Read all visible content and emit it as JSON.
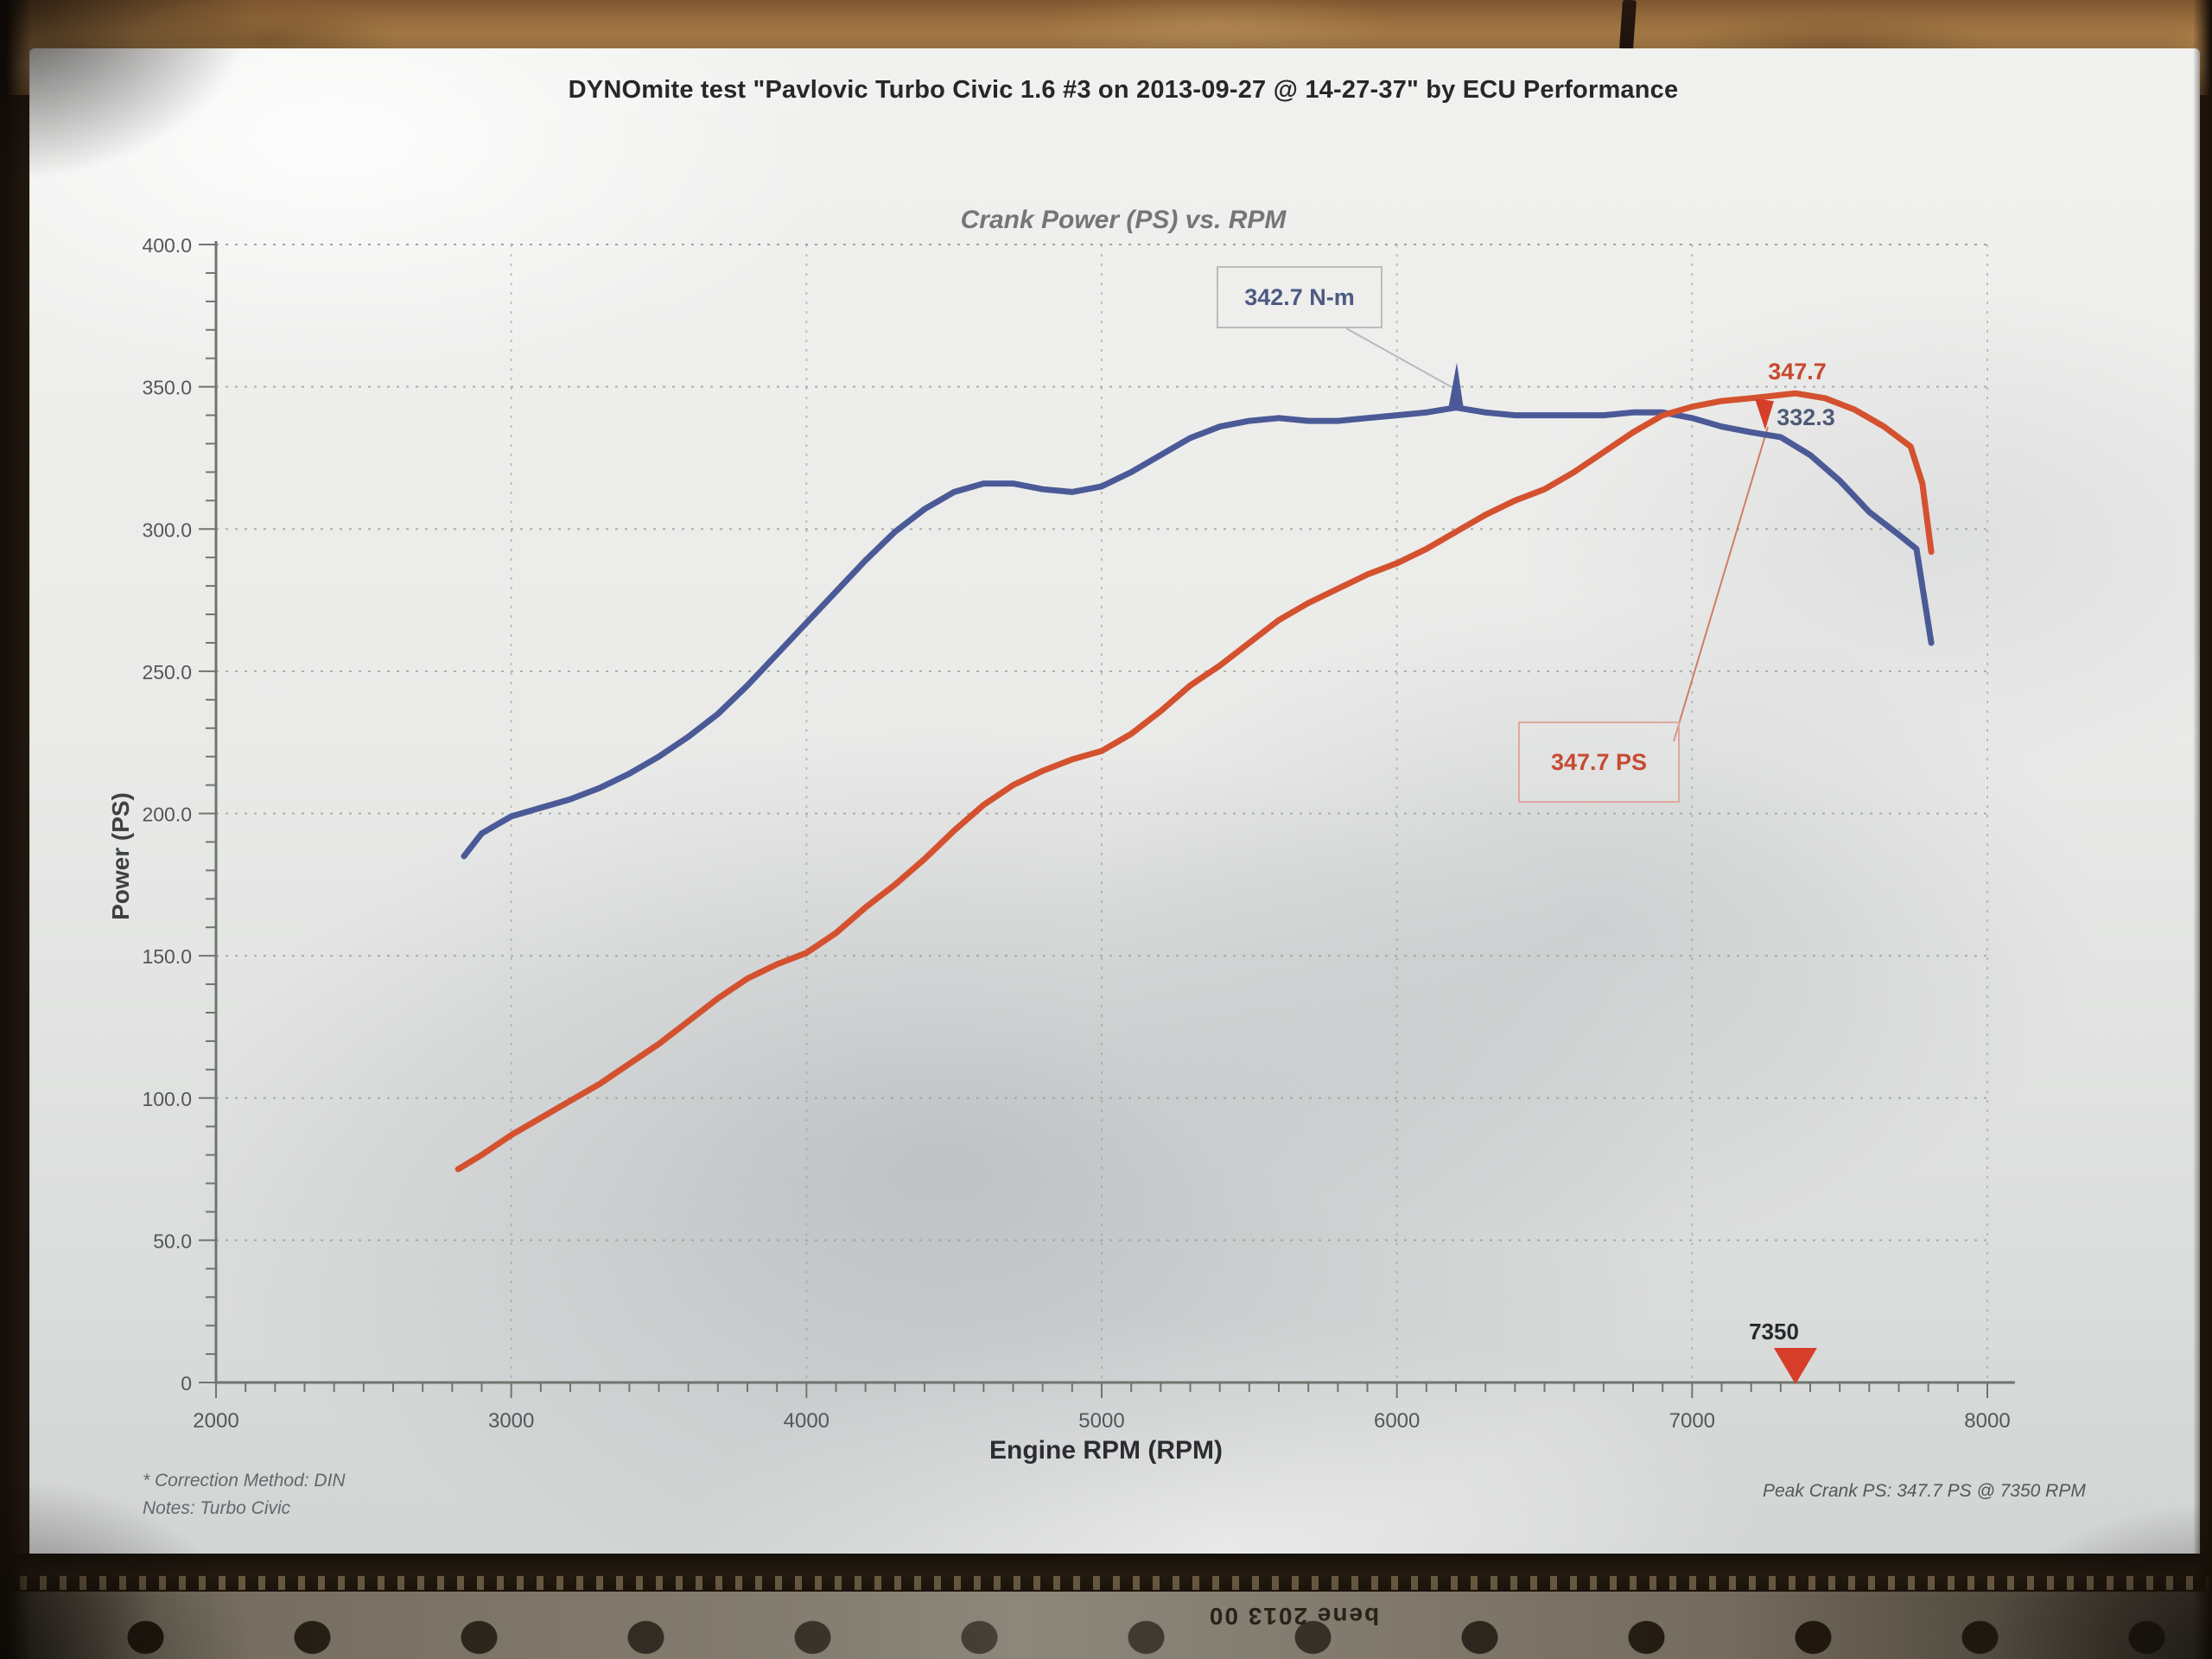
{
  "header": {
    "title": "DYNOmite test \"Pavlovic Turbo Civic 1.6  #3 on 2013-09-27 @ 14-27-37\" by ECU Performance"
  },
  "footer": {
    "correction_method": "* Correction Method: DIN",
    "notes": "Notes: Turbo Civic",
    "peak_summary": "Peak Crank PS: 347.7 PS @ 7350 RPM"
  },
  "photo": {
    "sleeve_text": "bene 2013 00"
  },
  "colors": {
    "torque_curve": "#4b5a97",
    "power_curve": "#d4512f",
    "marker_red": "#d63e2a",
    "grid": "#9aa09c",
    "axis": "#70756f",
    "tick_text": "#54575a"
  },
  "chart_data": {
    "type": "line",
    "title": "Crank Power (PS) vs. RPM",
    "xlabel": "Engine RPM (RPM)",
    "ylabel": "Power (PS)",
    "xlim": [
      2000,
      8000
    ],
    "ylim": [
      0,
      400
    ],
    "grid": "dotted, horizontal every 50 PS, vertical every 1000 RPM",
    "legend": "none",
    "x_ticks": [
      2000,
      3000,
      4000,
      5000,
      6000,
      7000,
      8000
    ],
    "x_tick_labels": [
      "2000",
      "3000",
      "4000",
      "5000",
      "6000",
      "7000",
      "8000"
    ],
    "y_ticks": [
      400,
      350,
      300,
      250,
      200,
      150,
      100,
      50,
      0
    ],
    "y_tick_labels": [
      "400.0",
      "350.0",
      "300.0",
      "250.0",
      "200.0",
      "150.0",
      "100.0",
      "50.0",
      "0"
    ],
    "series": [
      {
        "name": "crank-torque-nm",
        "color": "#4b5a97",
        "points": [
          [
            2840,
            185
          ],
          [
            2900,
            193
          ],
          [
            3000,
            199
          ],
          [
            3100,
            202
          ],
          [
            3200,
            205
          ],
          [
            3300,
            209
          ],
          [
            3400,
            214
          ],
          [
            3500,
            220
          ],
          [
            3600,
            227
          ],
          [
            3700,
            235
          ],
          [
            3800,
            245
          ],
          [
            3900,
            256
          ],
          [
            4000,
            267
          ],
          [
            4100,
            278
          ],
          [
            4200,
            289
          ],
          [
            4300,
            299
          ],
          [
            4400,
            307
          ],
          [
            4500,
            313
          ],
          [
            4600,
            316
          ],
          [
            4700,
            316
          ],
          [
            4800,
            314
          ],
          [
            4900,
            313
          ],
          [
            5000,
            315
          ],
          [
            5100,
            320
          ],
          [
            5200,
            326
          ],
          [
            5300,
            332
          ],
          [
            5400,
            336
          ],
          [
            5500,
            338
          ],
          [
            5600,
            339
          ],
          [
            5700,
            338
          ],
          [
            5800,
            338
          ],
          [
            5900,
            339
          ],
          [
            6000,
            340
          ],
          [
            6100,
            341
          ],
          [
            6200,
            342.7
          ],
          [
            6300,
            341
          ],
          [
            6400,
            340
          ],
          [
            6500,
            340
          ],
          [
            6600,
            340
          ],
          [
            6700,
            340
          ],
          [
            6800,
            341
          ],
          [
            6900,
            341
          ],
          [
            7000,
            339
          ],
          [
            7100,
            336
          ],
          [
            7200,
            334
          ],
          [
            7300,
            332.3
          ],
          [
            7400,
            326
          ],
          [
            7500,
            317
          ],
          [
            7600,
            306
          ],
          [
            7700,
            298
          ],
          [
            7760,
            293
          ],
          [
            7810,
            260
          ]
        ]
      },
      {
        "name": "crank-power-ps",
        "color": "#d4512f",
        "points": [
          [
            2820,
            75
          ],
          [
            2900,
            80
          ],
          [
            3000,
            87
          ],
          [
            3100,
            93
          ],
          [
            3200,
            99
          ],
          [
            3300,
            105
          ],
          [
            3400,
            112
          ],
          [
            3500,
            119
          ],
          [
            3600,
            127
          ],
          [
            3700,
            135
          ],
          [
            3800,
            142
          ],
          [
            3900,
            147
          ],
          [
            4000,
            151
          ],
          [
            4100,
            158
          ],
          [
            4200,
            167
          ],
          [
            4300,
            175
          ],
          [
            4400,
            184
          ],
          [
            4500,
            194
          ],
          [
            4600,
            203
          ],
          [
            4700,
            210
          ],
          [
            4800,
            215
          ],
          [
            4900,
            219
          ],
          [
            5000,
            222
          ],
          [
            5100,
            228
          ],
          [
            5200,
            236
          ],
          [
            5300,
            245
          ],
          [
            5400,
            252
          ],
          [
            5500,
            260
          ],
          [
            5600,
            268
          ],
          [
            5700,
            274
          ],
          [
            5800,
            279
          ],
          [
            5900,
            284
          ],
          [
            6000,
            288
          ],
          [
            6100,
            293
          ],
          [
            6200,
            299
          ],
          [
            6300,
            305
          ],
          [
            6400,
            310
          ],
          [
            6500,
            314
          ],
          [
            6600,
            320
          ],
          [
            6700,
            327
          ],
          [
            6800,
            334
          ],
          [
            6900,
            340
          ],
          [
            7000,
            343
          ],
          [
            7100,
            345
          ],
          [
            7200,
            346
          ],
          [
            7350,
            347.7
          ],
          [
            7450,
            346
          ],
          [
            7550,
            342
          ],
          [
            7650,
            336
          ],
          [
            7740,
            329
          ],
          [
            7780,
            316
          ],
          [
            7810,
            292
          ]
        ]
      }
    ],
    "annotations": {
      "torque_peak": {
        "label": "342.7 N-m",
        "x": 6200,
        "y": 342.7
      },
      "power_peak_value": {
        "label": "347.7",
        "x": 7350,
        "y": 347.7
      },
      "torque_at_power_peak": {
        "label": "332.3",
        "x": 7300,
        "y": 332.3
      },
      "power_peak_box": {
        "label": "347.7 PS"
      },
      "peak_rpm_marker": {
        "label": "7350",
        "x": 7350
      }
    }
  }
}
